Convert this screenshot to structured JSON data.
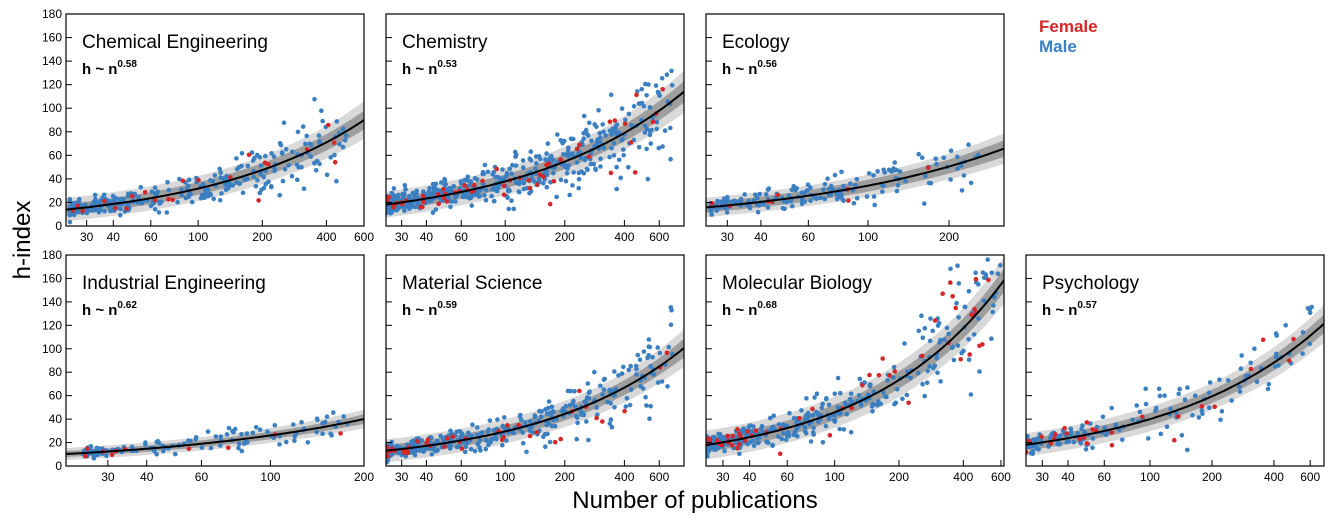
{
  "figure": {
    "xlabel": "Number of publications",
    "ylabel": "h-index",
    "legend": [
      {
        "label": "Female",
        "color": "#d62728"
      },
      {
        "label": "Male",
        "color": "#3a7fc1"
      }
    ],
    "colors": {
      "female": "#d62728",
      "male": "#3a7fc1",
      "fit": "#000000",
      "band_inner": "#9e9e9e",
      "band_outer": "#d9d9d9"
    }
  },
  "chart_data": [
    {
      "type": "scatter",
      "title": "Chemical Engineering",
      "eq_base": "h ~ n",
      "eq_exp": "0.58",
      "xscale": "log",
      "xlim": [
        24,
        600
      ],
      "ylim": [
        0,
        180
      ],
      "xticks": [
        30,
        40,
        60,
        100,
        200,
        400,
        600
      ],
      "yticks": [
        0,
        20,
        40,
        60,
        80,
        100,
        120,
        140,
        160,
        180
      ],
      "fit": {
        "amp": 2.2,
        "exp": 0.58
      },
      "band": {
        "inner": 8,
        "outer": 16
      },
      "samples": {
        "female": 22,
        "male": 300,
        "nmin": 25,
        "nmax": 500
      }
    },
    {
      "type": "scatter",
      "title": "Chemistry",
      "eq_base": "h ~ n",
      "eq_exp": "0.53",
      "xscale": "log",
      "xlim": [
        25,
        800
      ],
      "ylim": [
        0,
        180
      ],
      "xticks": [
        30,
        40,
        60,
        100,
        200,
        400,
        600
      ],
      "yticks": [
        0,
        20,
        40,
        60,
        80,
        100,
        120,
        140,
        160,
        180
      ],
      "fit": {
        "amp": 3.3,
        "exp": 0.53
      },
      "band": {
        "inner": 9,
        "outer": 18
      },
      "samples": {
        "female": 55,
        "male": 520,
        "nmin": 25,
        "nmax": 700
      }
    },
    {
      "type": "scatter",
      "title": "Ecology",
      "eq_base": "h ~ n",
      "eq_exp": "0.56",
      "xscale": "log",
      "xlim": [
        25,
        320
      ],
      "ylim": [
        0,
        180
      ],
      "xticks": [
        30,
        40,
        60,
        100,
        200
      ],
      "yticks": [
        0,
        20,
        40,
        60,
        80,
        100,
        120,
        140,
        160,
        180
      ],
      "fit": {
        "amp": 2.6,
        "exp": 0.56
      },
      "band": {
        "inner": 7,
        "outer": 13
      },
      "samples": {
        "female": 8,
        "male": 170,
        "nmin": 26,
        "nmax": 260
      }
    },
    {
      "type": "scatter",
      "title": "Industrial Engineering",
      "eq_base": "h ~ n",
      "eq_exp": "0.62",
      "xscale": "log",
      "xlim": [
        22,
        200
      ],
      "ylim": [
        0,
        180
      ],
      "xticks": [
        30,
        40,
        60,
        100,
        200
      ],
      "yticks": [
        0,
        20,
        40,
        60,
        80,
        100,
        120,
        140,
        160,
        180
      ],
      "fit": {
        "amp": 1.5,
        "exp": 0.62
      },
      "band": {
        "inner": 4,
        "outer": 8
      },
      "samples": {
        "female": 10,
        "male": 120,
        "nmin": 25,
        "nmax": 180
      }
    },
    {
      "type": "scatter",
      "title": "Material Science",
      "eq_base": "h ~ n",
      "eq_exp": "0.59",
      "xscale": "log",
      "xlim": [
        25,
        800
      ],
      "ylim": [
        0,
        180
      ],
      "xticks": [
        30,
        40,
        60,
        100,
        200,
        400,
        600
      ],
      "yticks": [
        0,
        20,
        40,
        60,
        80,
        100,
        120,
        140,
        160,
        180
      ],
      "fit": {
        "amp": 1.95,
        "exp": 0.59
      },
      "band": {
        "inner": 8,
        "outer": 16
      },
      "samples": {
        "female": 40,
        "male": 380,
        "nmin": 25,
        "nmax": 700
      }
    },
    {
      "type": "scatter",
      "title": "Molecular Biology",
      "eq_base": "h ~ n",
      "eq_exp": "0.68",
      "xscale": "log",
      "xlim": [
        25,
        620
      ],
      "ylim": [
        0,
        180
      ],
      "xticks": [
        30,
        40,
        60,
        100,
        200,
        400,
        600
      ],
      "yticks": [
        0,
        20,
        40,
        60,
        80,
        100,
        120,
        140,
        160,
        180
      ],
      "fit": {
        "amp": 2.0,
        "exp": 0.68
      },
      "band": {
        "inner": 10,
        "outer": 20
      },
      "samples": {
        "female": 55,
        "male": 360,
        "nmin": 25,
        "nmax": 600
      }
    },
    {
      "type": "scatter",
      "title": "Psychology",
      "eq_base": "h ~ n",
      "eq_exp": "0.57",
      "xscale": "log",
      "xlim": [
        25,
        700
      ],
      "ylim": [
        0,
        180
      ],
      "xticks": [
        30,
        40,
        60,
        100,
        200,
        400,
        600
      ],
      "yticks": [
        0,
        20,
        40,
        60,
        80,
        100,
        120,
        140,
        160,
        180
      ],
      "fit": {
        "amp": 2.9,
        "exp": 0.57
      },
      "band": {
        "inner": 8,
        "outer": 16
      },
      "samples": {
        "female": 25,
        "male": 160,
        "nmin": 25,
        "nmax": 650
      }
    }
  ]
}
